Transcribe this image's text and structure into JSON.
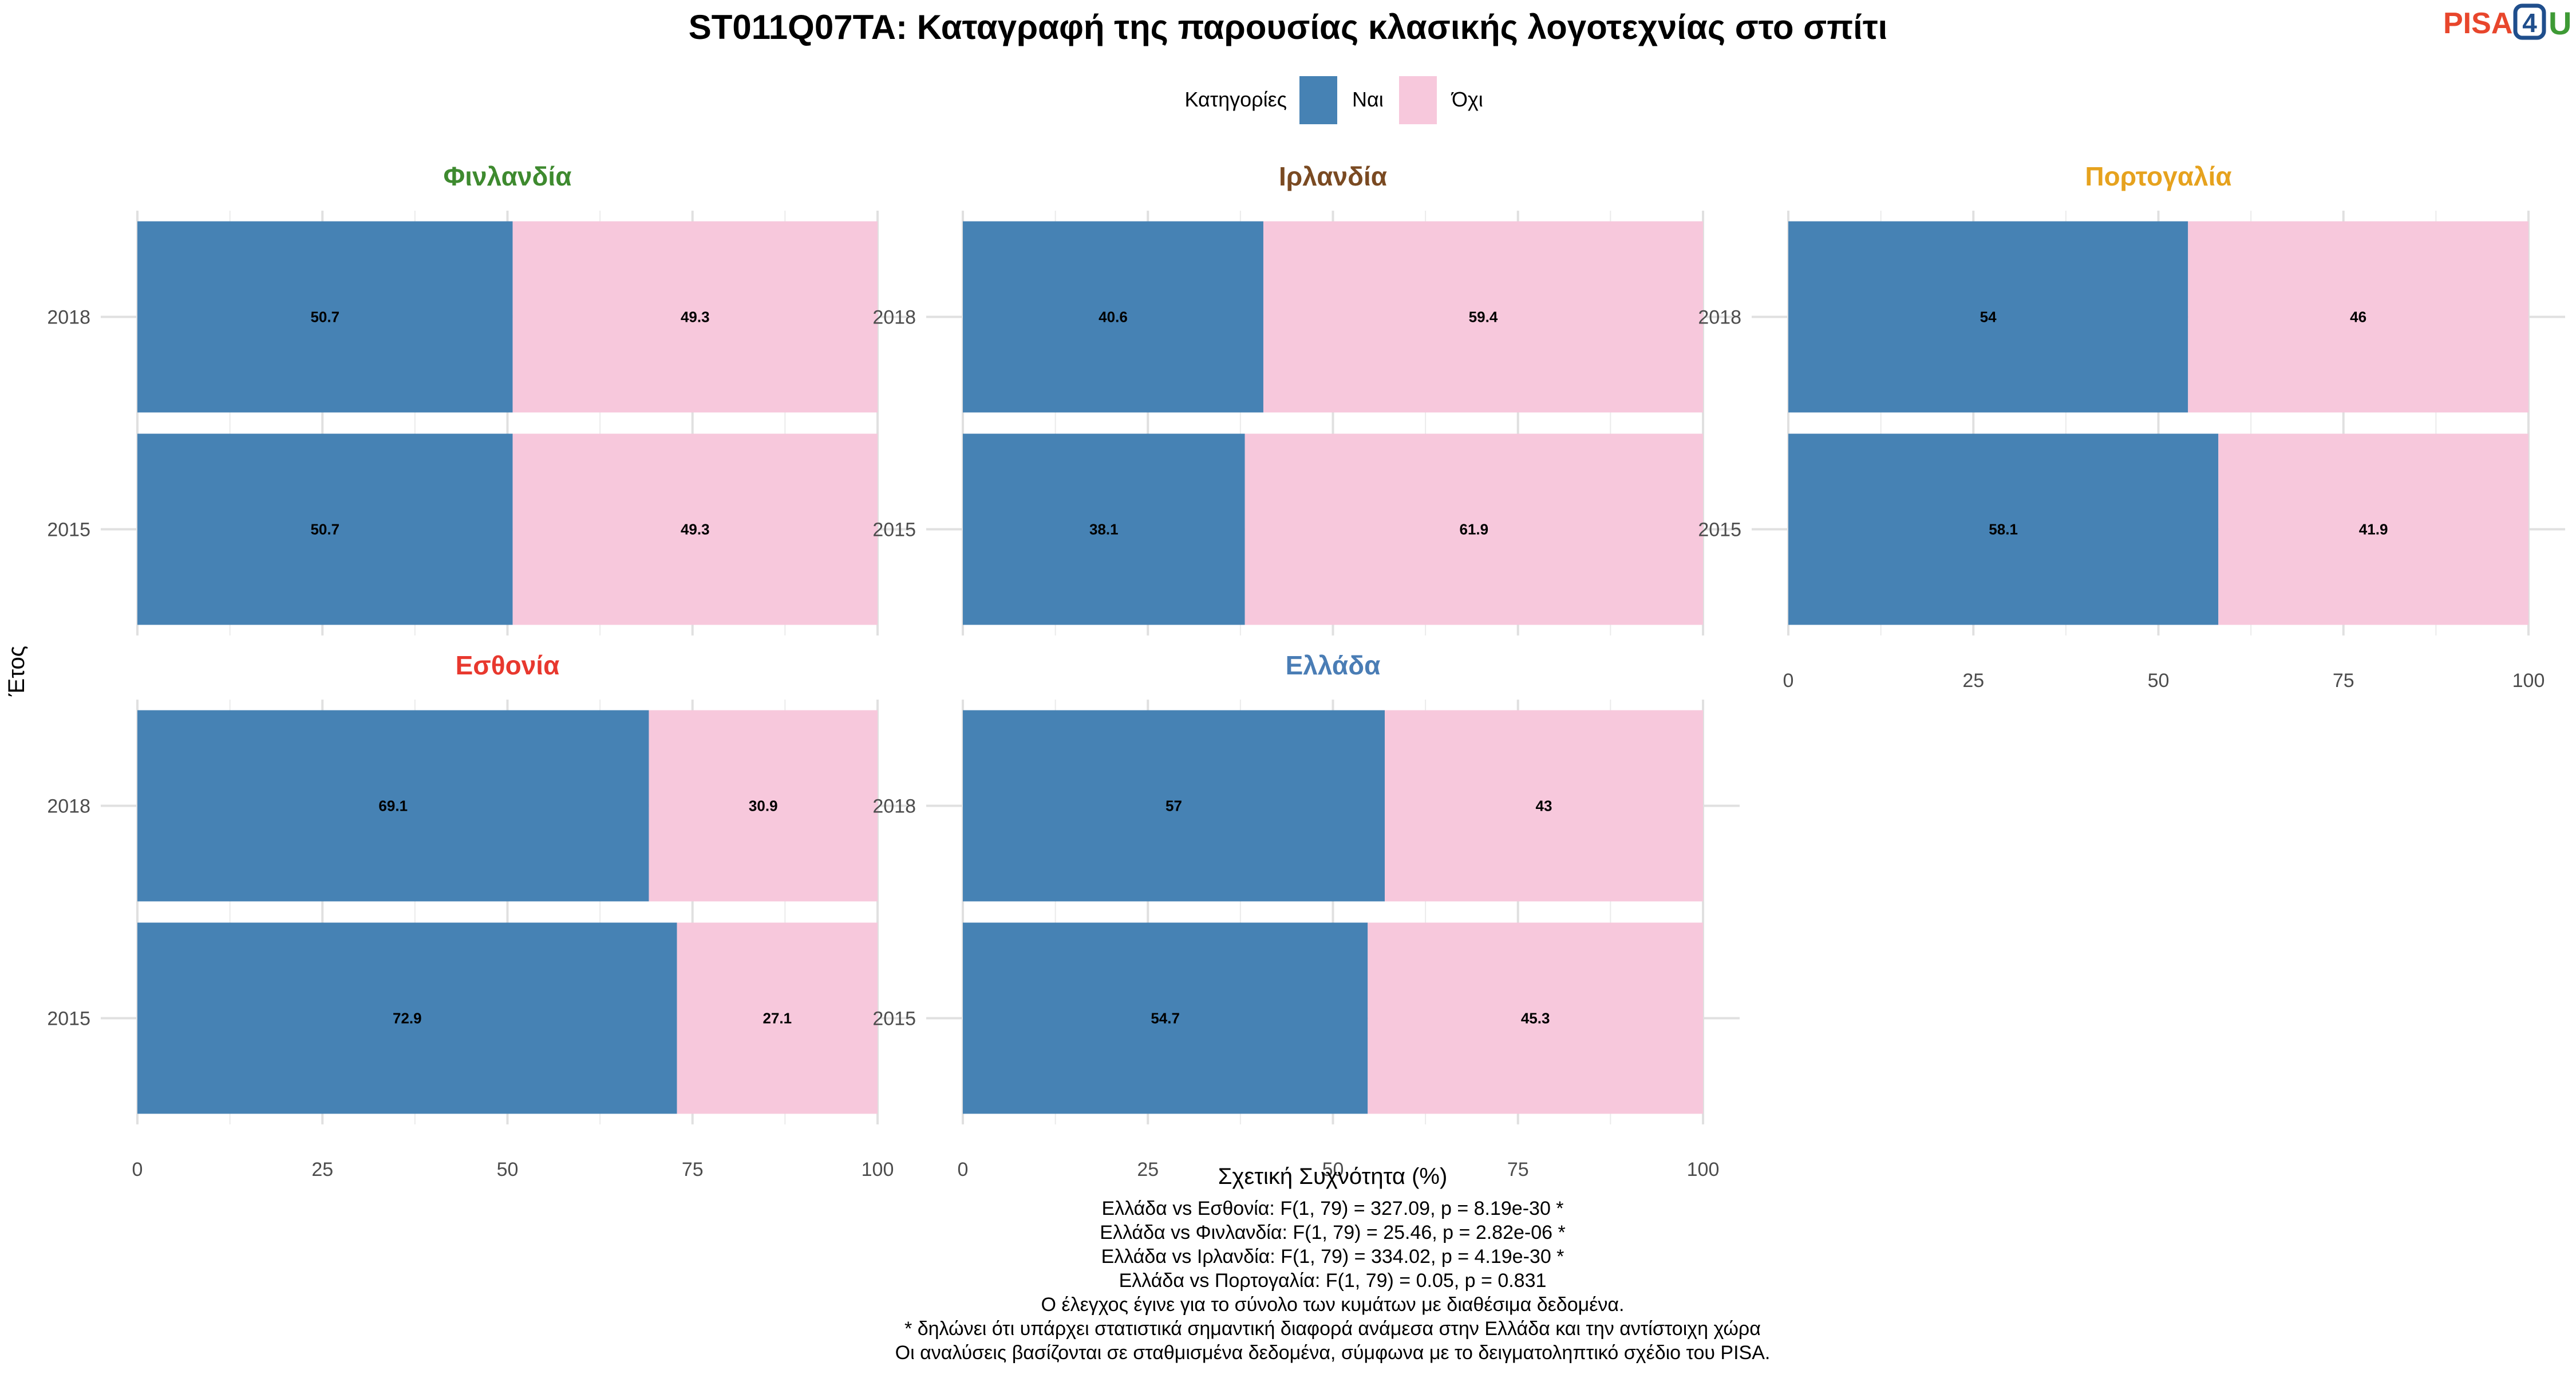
{
  "title": "ST011Q07TA: Καταγραφή της παρουσίας κλασικής λογοτεχνίας στο σπίτι",
  "logo": {
    "part1": "PISA",
    "part2": "4",
    "part3": "U",
    "colors": {
      "part1": "#e8462c",
      "part2": "#1f4e8c",
      "part3": "#3e9a35"
    }
  },
  "legend": {
    "title": "Κατηγορίες",
    "placement": "top",
    "items": [
      {
        "label": "Ναι",
        "color": "#4682b4"
      },
      {
        "label": "Όχι",
        "color": "#f7c8dc"
      }
    ]
  },
  "chart_data": {
    "type": "bar",
    "orientation": "horizontal",
    "stacked": true,
    "ylabel": "Έτος",
    "xlabel": "Σχετική Συχνότητα (%)",
    "xlim": [
      0,
      100
    ],
    "x_ticks": [
      "0",
      "25",
      "50",
      "75",
      "100"
    ],
    "categories": [
      "2018",
      "2015"
    ],
    "grid": true,
    "panels": [
      {
        "name": "Φινλανδία",
        "color": "#3e8a2f",
        "series": [
          {
            "name": "Ναι",
            "values": [
              50.7,
              50.7
            ],
            "labels": [
              "50.7",
              "50.7"
            ]
          },
          {
            "name": "Όχι",
            "values": [
              49.3,
              49.3
            ],
            "labels": [
              "49.3",
              "49.3"
            ]
          }
        ]
      },
      {
        "name": "Ιρλανδία",
        "color": "#7a4a22",
        "series": [
          {
            "name": "Ναι",
            "values": [
              40.6,
              38.1
            ],
            "labels": [
              "40.6",
              "38.1"
            ]
          },
          {
            "name": "Όχι",
            "values": [
              59.4,
              61.9
            ],
            "labels": [
              "59.4",
              "61.9"
            ]
          }
        ]
      },
      {
        "name": "Πορτογαλία",
        "color": "#e6a21e",
        "series": [
          {
            "name": "Ναι",
            "values": [
              54,
              58.1
            ],
            "labels": [
              "54",
              "58.1"
            ]
          },
          {
            "name": "Όχι",
            "values": [
              46,
              41.9
            ],
            "labels": [
              "46",
              "41.9"
            ]
          }
        ]
      },
      {
        "name": "Εσθονία",
        "color": "#e8382e",
        "series": [
          {
            "name": "Ναι",
            "values": [
              69.1,
              72.9
            ],
            "labels": [
              "69.1",
              "72.9"
            ]
          },
          {
            "name": "Όχι",
            "values": [
              30.9,
              27.1
            ],
            "labels": [
              "30.9",
              "27.1"
            ]
          }
        ]
      },
      {
        "name": "Ελλάδα",
        "color": "#4a7db5",
        "series": [
          {
            "name": "Ναι",
            "values": [
              57,
              54.7
            ],
            "labels": [
              "57",
              "54.7"
            ]
          },
          {
            "name": "Όχι",
            "values": [
              43,
              45.3
            ],
            "labels": [
              "43",
              "45.3"
            ]
          }
        ]
      }
    ]
  },
  "caption": [
    "Ελλάδα vs Εσθονία: F(1, 79) = 327.09, p = 8.19e-30 *",
    "Ελλάδα vs Φινλανδία: F(1, 79) = 25.46, p = 2.82e-06 *",
    "Ελλάδα vs Ιρλανδία: F(1, 79) = 334.02, p = 4.19e-30 *",
    "Ελλάδα vs Πορτογαλία: F(1, 79) = 0.05, p = 0.831",
    "Ο έλεγχος έγινε για το σύνολο των κυμάτων με διαθέσιμα δεδομένα.",
    "* δηλώνει ότι υπάρχει στατιστικά σημαντική διαφορά ανάμεσα στην Ελλάδα και την αντίστοιχη χώρα",
    "Οι αναλύσεις βασίζονται σε σταθμισμένα δεδομένα, σύμφωνα με το δειγματοληπτικό σχέδιο του PISA."
  ]
}
